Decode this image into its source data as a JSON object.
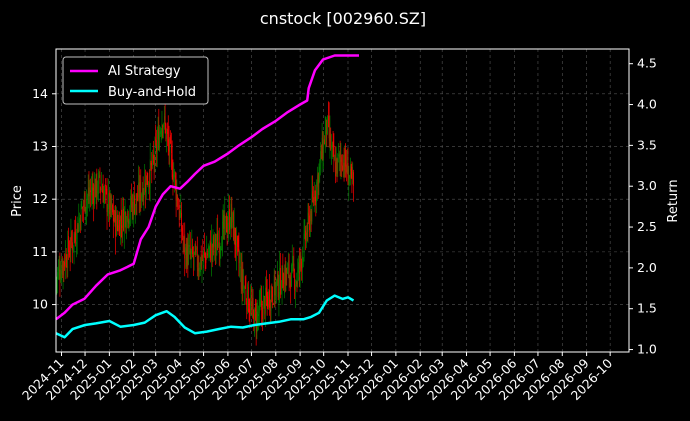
{
  "chart_data": {
    "type": "line",
    "title": "cnstock [002960.SZ]",
    "ylabel_left": "Price",
    "ylabel_right": "Return",
    "grid": true,
    "legend_placement": "top-left",
    "x_tick_labels": [
      "2024-11",
      "2024-12",
      "2025-01",
      "2025-02",
      "2025-03",
      "2025-04",
      "2025-05",
      "2025-06",
      "2025-07",
      "2025-08",
      "2025-09",
      "2025-10",
      "2025-11",
      "2025-12",
      "2026-01",
      "2026-02",
      "2026-03",
      "2026-04",
      "2026-05",
      "2026-06",
      "2026-07",
      "2026-08",
      "2026-09",
      "2026-10"
    ],
    "xlim": [
      "2024-10-25",
      "2026-10-25"
    ],
    "ylim_left": [
      9.1,
      14.85
    ],
    "ylim_right": [
      0.97,
      4.68
    ],
    "left_ticks": [
      10,
      11,
      12,
      13,
      14
    ],
    "right_ticks": [
      1.0,
      1.5,
      2.0,
      2.5,
      3.0,
      3.5,
      4.0,
      4.5
    ],
    "price_colors": {
      "up": "#008000",
      "down": "#ff0000"
    },
    "price": {
      "x": [
        "2024-10-25",
        "2024-11-15",
        "2024-12-01",
        "2024-12-20",
        "2025-01-10",
        "2025-02-05",
        "2025-02-25",
        "2025-03-10",
        "2025-03-25",
        "2025-04-07",
        "2025-04-25",
        "2025-05-20",
        "2025-06-05",
        "2025-06-18",
        "2025-07-05",
        "2025-07-25",
        "2025-08-15",
        "2025-08-28",
        "2025-09-10",
        "2025-09-22",
        "2025-10-05",
        "2025-10-15",
        "2025-10-25",
        "2025-11-08"
      ],
      "y": [
        10.5,
        11.2,
        12.0,
        12.3,
        11.5,
        12.0,
        12.6,
        13.6,
        12.4,
        11.0,
        10.8,
        11.2,
        11.7,
        10.5,
        9.7,
        10.2,
        10.6,
        10.5,
        11.4,
        12.3,
        13.4,
        12.6,
        12.8,
        12.2
      ]
    },
    "series": [
      {
        "name": "AI Strategy",
        "color": "#ff00ff",
        "x": [
          "2024-10-25",
          "2024-11-05",
          "2024-11-15",
          "2024-11-30",
          "2024-12-15",
          "2024-12-30",
          "2025-01-15",
          "2025-02-01",
          "2025-02-10",
          "2025-02-20",
          "2025-03-01",
          "2025-03-10",
          "2025-03-20",
          "2025-04-01",
          "2025-04-10",
          "2025-04-20",
          "2025-05-01",
          "2025-05-15",
          "2025-06-01",
          "2025-06-15",
          "2025-07-01",
          "2025-07-15",
          "2025-08-01",
          "2025-08-15",
          "2025-09-01",
          "2025-09-10",
          "2025-09-12",
          "2025-09-20",
          "2025-09-30",
          "2025-10-15",
          "2025-10-31",
          "2025-11-15"
        ],
        "y": [
          1.37,
          1.45,
          1.55,
          1.62,
          1.78,
          1.92,
          1.97,
          2.05,
          2.35,
          2.5,
          2.75,
          2.9,
          3.0,
          2.97,
          3.05,
          3.15,
          3.25,
          3.3,
          3.4,
          3.5,
          3.6,
          3.7,
          3.8,
          3.9,
          4.0,
          4.05,
          4.2,
          4.42,
          4.55,
          4.6,
          4.6,
          4.6
        ]
      },
      {
        "name": "Buy-and-Hold",
        "color": "#00ffff",
        "x": [
          "2024-10-25",
          "2024-11-05",
          "2024-11-15",
          "2024-12-01",
          "2024-12-15",
          "2025-01-01",
          "2025-01-15",
          "2025-02-01",
          "2025-02-15",
          "2025-03-01",
          "2025-03-15",
          "2025-03-25",
          "2025-04-07",
          "2025-04-20",
          "2025-05-05",
          "2025-05-20",
          "2025-06-05",
          "2025-06-20",
          "2025-07-05",
          "2025-07-20",
          "2025-08-05",
          "2025-08-20",
          "2025-09-05",
          "2025-09-15",
          "2025-09-25",
          "2025-10-05",
          "2025-10-15",
          "2025-10-25",
          "2025-11-01",
          "2025-11-08"
        ],
        "y": [
          1.2,
          1.15,
          1.25,
          1.3,
          1.32,
          1.35,
          1.28,
          1.3,
          1.33,
          1.42,
          1.47,
          1.4,
          1.27,
          1.2,
          1.22,
          1.25,
          1.28,
          1.27,
          1.3,
          1.32,
          1.34,
          1.37,
          1.37,
          1.4,
          1.45,
          1.6,
          1.66,
          1.62,
          1.64,
          1.6
        ]
      }
    ]
  }
}
